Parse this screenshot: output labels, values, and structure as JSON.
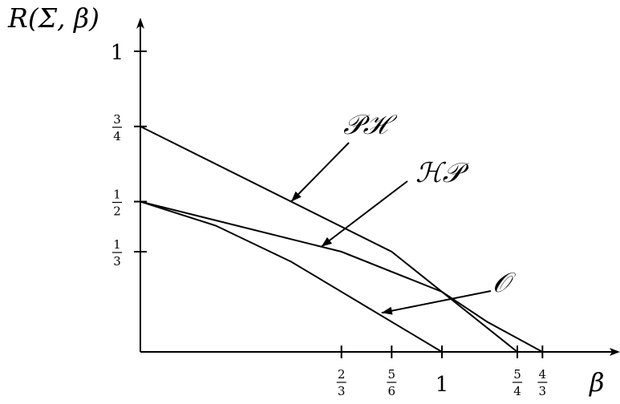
{
  "chart_data": {
    "type": "line",
    "xlabel": "β",
    "ylabel": "R(Σ, β)",
    "xlim": [
      0,
      1.5
    ],
    "ylim": [
      0,
      1.1
    ],
    "x_ticks": [
      {
        "value": 0.6667,
        "num": "2",
        "den": "3"
      },
      {
        "value": 0.8333,
        "num": "5",
        "den": "6"
      },
      {
        "value": 1,
        "label": "1"
      },
      {
        "value": 1.25,
        "num": "5",
        "den": "4"
      },
      {
        "value": 1.3333,
        "num": "4",
        "den": "3"
      }
    ],
    "y_ticks": [
      {
        "value": 0.3333,
        "num": "1",
        "den": "3"
      },
      {
        "value": 0.5,
        "num": "1",
        "den": "2"
      },
      {
        "value": 0.75,
        "num": "3",
        "den": "4"
      },
      {
        "value": 1,
        "label": "1"
      }
    ],
    "series": [
      {
        "name": "𝒫ℋ",
        "x": [
          0,
          0.8333,
          1.25
        ],
        "y": [
          0.75,
          0.3333,
          0
        ]
      },
      {
        "name": "ℋ𝒫",
        "x": [
          0,
          0.6667,
          1.0,
          1.15,
          1.3333
        ],
        "y": [
          0.5,
          0.3333,
          0.2,
          0.1,
          0
        ]
      },
      {
        "name": "𝒪",
        "x": [
          0,
          0.25,
          0.5,
          0.75,
          1.0
        ],
        "y": [
          0.5,
          0.42,
          0.3,
          0.15,
          0
        ]
      }
    ],
    "annotations": [
      {
        "text": "𝒫ℋ",
        "series": 0,
        "point_x": 0.5,
        "point_y": 0.5
      },
      {
        "text": "ℋ𝒫",
        "series": 1,
        "point_x": 0.6,
        "point_y": 0.35
      },
      {
        "text": "𝒪",
        "series": 2,
        "point_x": 0.8,
        "point_y": 0.13
      }
    ],
    "grid": false
  }
}
